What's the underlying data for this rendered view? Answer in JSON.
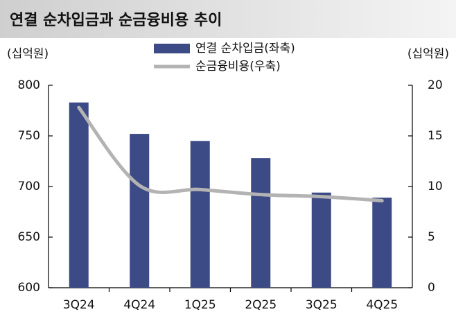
{
  "chart_data": {
    "type": "bar_line",
    "title": "연결 순차입금과 순금융비용 추이",
    "y_unit": "(십억원)",
    "y2_unit": "(십억원)",
    "categories": [
      "3Q24",
      "4Q24",
      "1Q25",
      "2Q25",
      "3Q25",
      "4Q25"
    ],
    "series": [
      {
        "name": "연결 순차입금(좌축)",
        "type": "bar",
        "color": "#3c4a85",
        "values": [
          783,
          752,
          745,
          728,
          694,
          689
        ]
      },
      {
        "name": "순금융비용(우축)",
        "type": "line",
        "axis": "y2",
        "color": "#b3b3b3",
        "values": [
          17.8,
          10.1,
          9.7,
          9.2,
          9.0,
          8.6
        ]
      }
    ],
    "ylim": [
      600,
      800
    ],
    "yticks": [
      600,
      650,
      700,
      750,
      800
    ],
    "y2lim": [
      0,
      20
    ],
    "y2ticks": [
      0,
      5,
      10,
      15,
      20
    ],
    "grid": false
  }
}
